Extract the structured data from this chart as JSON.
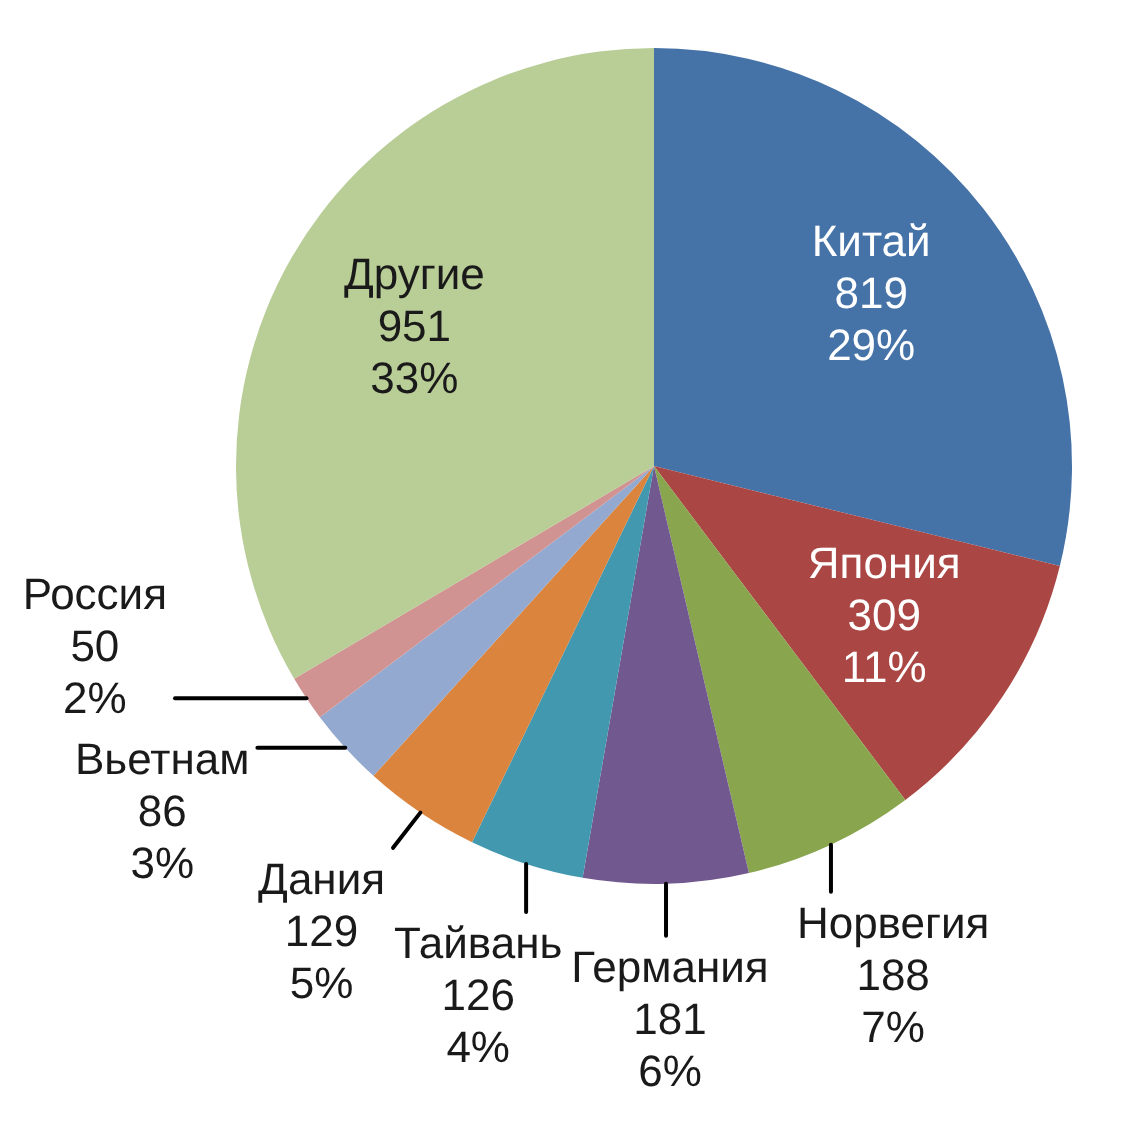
{
  "chart_data": {
    "type": "pie",
    "categories": [
      "Китай",
      "Япония",
      "Норвегия",
      "Германия",
      "Тайвань",
      "Дания",
      "Вьетнам",
      "Россия",
      "Другие"
    ],
    "values": [
      819,
      309,
      188,
      181,
      126,
      129,
      86,
      50,
      951
    ],
    "colors": [
      "#4572a7",
      "#aa4643",
      "#89a54e",
      "#71588f",
      "#4198af",
      "#db843d",
      "#93a9cf",
      "#d19392",
      "#b9cd96"
    ],
    "value_labels": [
      "819\n29%",
      "309\n11%",
      "188\n7%",
      "181\n6%",
      "126\n4%",
      "129\n5%",
      "86\n3%",
      "50\n2%",
      "951\n33%"
    ]
  }
}
